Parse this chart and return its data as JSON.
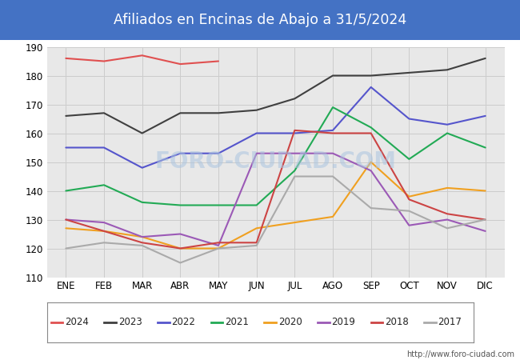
{
  "title": "Afiliados en Encinas de Abajo a 31/5/2024",
  "title_color": "#ffffff",
  "title_bg_color": "#4472c4",
  "ylim": [
    110,
    190
  ],
  "yticks": [
    110,
    120,
    130,
    140,
    150,
    160,
    170,
    180,
    190
  ],
  "months": [
    "ENE",
    "FEB",
    "MAR",
    "ABR",
    "MAY",
    "JUN",
    "JUL",
    "AGO",
    "SEP",
    "OCT",
    "NOV",
    "DIC"
  ],
  "watermark": "FORO-CIUDAD.COM",
  "url": "http://www.foro-ciudad.com",
  "series": {
    "2024": {
      "color": "#e05050",
      "data": [
        186,
        185,
        187,
        184,
        185,
        null,
        null,
        null,
        null,
        null,
        null,
        null
      ]
    },
    "2023": {
      "color": "#404040",
      "data": [
        166,
        167,
        160,
        167,
        167,
        168,
        172,
        180,
        180,
        181,
        182,
        186
      ]
    },
    "2022": {
      "color": "#5555cc",
      "data": [
        155,
        155,
        148,
        153,
        153,
        160,
        160,
        161,
        176,
        165,
        163,
        166
      ]
    },
    "2021": {
      "color": "#22aa55",
      "data": [
        140,
        142,
        136,
        135,
        135,
        135,
        147,
        169,
        162,
        151,
        160,
        155
      ]
    },
    "2020": {
      "color": "#f0a020",
      "data": [
        127,
        126,
        124,
        120,
        120,
        127,
        129,
        131,
        150,
        138,
        141,
        140
      ]
    },
    "2019": {
      "color": "#9b59b6",
      "data": [
        130,
        129,
        124,
        125,
        121,
        153,
        153,
        153,
        147,
        128,
        130,
        126
      ]
    },
    "2018": {
      "color": "#cc4444",
      "data": [
        130,
        126,
        122,
        120,
        122,
        122,
        161,
        160,
        160,
        137,
        132,
        130
      ]
    },
    "2017": {
      "color": "#aaaaaa",
      "data": [
        120,
        122,
        121,
        115,
        120,
        121,
        145,
        145,
        134,
        133,
        127,
        130
      ]
    }
  },
  "legend_order": [
    "2024",
    "2023",
    "2022",
    "2021",
    "2020",
    "2019",
    "2018",
    "2017"
  ],
  "grid_color": "#cccccc",
  "plot_bg_color": "#e8e8e8"
}
